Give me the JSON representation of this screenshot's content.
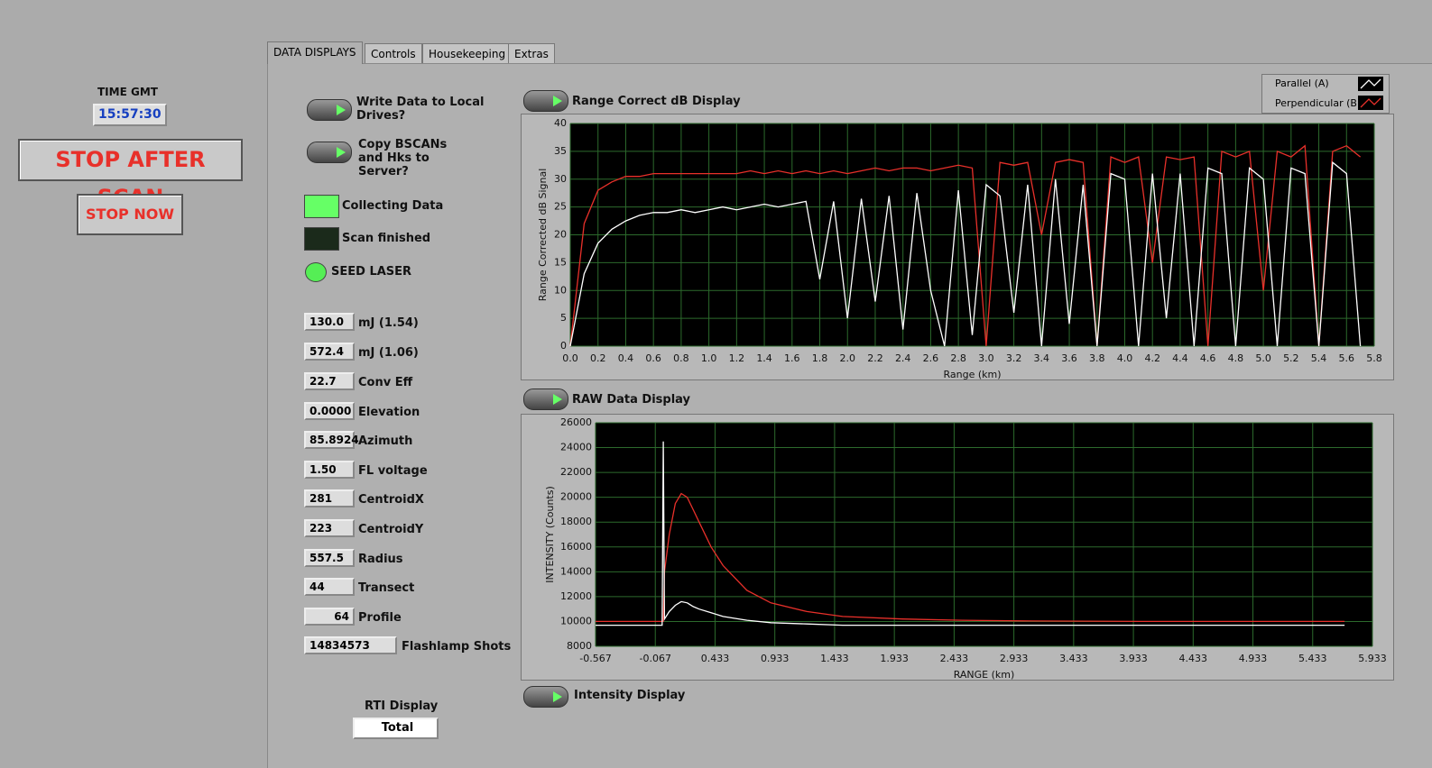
{
  "clock": {
    "label": "TIME GMT",
    "value": "15:57:30"
  },
  "buttons": {
    "stop_after_scan": "STOP AFTER SCAN",
    "stop_now": "STOP NOW"
  },
  "tabs": [
    "DATA DISPLAYS",
    "Controls",
    "Housekeeping",
    "Extras"
  ],
  "toggles": [
    "Write Data to Local Drives?",
    "Copy BSCANs and Hks to Server?"
  ],
  "indicators": [
    "Collecting Data",
    "Scan finished",
    "SEED LASER"
  ],
  "fields": [
    {
      "value": "130.0",
      "label": "mJ (1.54)"
    },
    {
      "value": "572.4",
      "label": "mJ (1.06)"
    },
    {
      "value": "22.7",
      "label": "Conv Eff"
    },
    {
      "value": "0.0000",
      "label": "Elevation"
    },
    {
      "value": "85.8924",
      "label": "Azimuth"
    },
    {
      "value": "1.50",
      "label": "FL voltage"
    },
    {
      "value": "281",
      "label": "CentroidX"
    },
    {
      "value": "223",
      "label": "CentroidY"
    },
    {
      "value": "557.5",
      "label": "Radius"
    },
    {
      "value": "44",
      "label": "Transect"
    },
    {
      "value": "64",
      "label": "Profile"
    },
    {
      "value": "14834573",
      "label": "Flashlamp Shots"
    }
  ],
  "rti": {
    "label": "RTI Display",
    "value": "Total"
  },
  "intensity_display": "Intensity Display",
  "chart_data": [
    {
      "type": "line",
      "title": "Range Correct dB Display",
      "x_label": "Range (km)",
      "y_label": "Range Corrected dB Signal",
      "xlim": [
        0,
        5.8
      ],
      "ylim": [
        0,
        40
      ],
      "xticks": [
        {
          "value": 0,
          "label": "0.0"
        },
        0.2,
        0.4,
        0.6,
        0.8,
        {
          "value": 1,
          "label": "1.0"
        },
        1.2,
        1.4,
        1.6,
        1.8,
        {
          "value": 2,
          "label": "2.0"
        },
        2.2,
        2.4,
        2.6,
        2.8,
        {
          "value": 3,
          "label": "3.0"
        },
        3.2,
        3.4,
        3.6,
        3.8,
        {
          "value": 4,
          "label": "4.0"
        },
        4.2,
        4.4,
        4.6,
        4.8,
        {
          "value": 5,
          "label": "5.0"
        },
        5.2,
        5.4,
        5.6,
        5.8
      ],
      "yticks": [
        0,
        5,
        10,
        15,
        20,
        25,
        30,
        35,
        40
      ],
      "grid": true,
      "x": [
        0,
        0.1,
        0.2,
        0.3,
        0.4,
        0.5,
        0.6,
        0.7,
        0.8,
        0.9,
        1.0,
        1.1,
        1.2,
        1.3,
        1.4,
        1.5,
        1.6,
        1.7,
        1.8,
        1.9,
        2.0,
        2.1,
        2.2,
        2.3,
        2.4,
        2.5,
        2.6,
        2.7,
        2.8,
        2.9,
        3.0,
        3.1,
        3.2,
        3.3,
        3.4,
        3.5,
        3.6,
        3.7,
        3.8,
        3.9,
        4.0,
        4.1,
        4.2,
        4.3,
        4.4,
        4.5,
        4.6,
        4.7,
        4.8,
        4.9,
        5.0,
        5.1,
        5.2,
        5.3,
        5.4,
        5.5,
        5.6,
        5.7
      ],
      "series": [
        {
          "name": "Parallel (A)",
          "color": "#ffffff",
          "values": [
            0,
            13,
            18.5,
            21,
            22.5,
            23.5,
            24,
            24,
            24.5,
            24,
            24.5,
            25,
            24.5,
            25,
            25.5,
            25,
            25.5,
            26,
            12,
            26,
            5,
            26.5,
            8,
            27,
            3,
            27.5,
            10,
            0,
            28,
            2,
            29,
            27,
            6,
            29,
            0,
            30,
            4,
            29,
            0,
            31,
            30,
            0,
            31,
            5,
            31,
            0,
            32,
            31,
            0,
            32,
            30,
            0,
            32,
            31,
            0,
            33,
            31,
            0
          ]
        },
        {
          "name": "Perpendicular (B)",
          "color": "#e8302a",
          "values": [
            0,
            22,
            28,
            29.5,
            30.5,
            30.5,
            31,
            31,
            31,
            31,
            31,
            31,
            31,
            31.5,
            31,
            31.5,
            31,
            31.5,
            31,
            31.5,
            31,
            31.5,
            32,
            31.5,
            32,
            32,
            31.5,
            32,
            32.5,
            32,
            0,
            33,
            32.5,
            33,
            20,
            33,
            33.5,
            33,
            0,
            34,
            33,
            34,
            15,
            34,
            33.5,
            34,
            0,
            35,
            34,
            35,
            10,
            35,
            34,
            36,
            0,
            35,
            36,
            34
          ]
        }
      ]
    },
    {
      "type": "line",
      "title": "RAW Data Display",
      "x_label": "RANGE (km)",
      "y_label": "INTENSITY (Counts)",
      "xlim": [
        -0.567,
        5.933
      ],
      "ylim": [
        8000,
        26000
      ],
      "xticks": [
        -0.567,
        -0.067,
        0.433,
        0.933,
        1.433,
        1.933,
        2.433,
        2.933,
        3.433,
        3.933,
        4.433,
        4.933,
        5.433,
        5.933
      ],
      "yticks": [
        8000,
        10000,
        12000,
        14000,
        16000,
        18000,
        20000,
        22000,
        24000,
        26000
      ],
      "grid": true,
      "x": [
        -0.567,
        -0.4,
        -0.2,
        -0.01,
        0.0,
        0.01,
        0.05,
        0.1,
        0.15,
        0.2,
        0.25,
        0.3,
        0.4,
        0.5,
        0.7,
        0.9,
        1.2,
        1.5,
        2.0,
        2.5,
        3.0,
        4.0,
        5.0,
        5.7
      ],
      "series": [
        {
          "name": "Parallel (A)",
          "color": "#e8302a",
          "values": [
            10000,
            10000,
            10000,
            10000,
            10000,
            14000,
            17000,
            19500,
            20300,
            20000,
            19000,
            18000,
            16000,
            14500,
            12500,
            11500,
            10800,
            10400,
            10200,
            10100,
            10050,
            10000,
            10000,
            10000
          ]
        },
        {
          "name": "Perpendicular (B)",
          "color": "#ffffff",
          "values": [
            9700,
            9700,
            9700,
            9700,
            24500,
            10200,
            10800,
            11300,
            11600,
            11500,
            11200,
            11000,
            10700,
            10400,
            10100,
            9900,
            9800,
            9700,
            9700,
            9700,
            9700,
            9700,
            9700,
            9700
          ]
        }
      ]
    }
  ]
}
